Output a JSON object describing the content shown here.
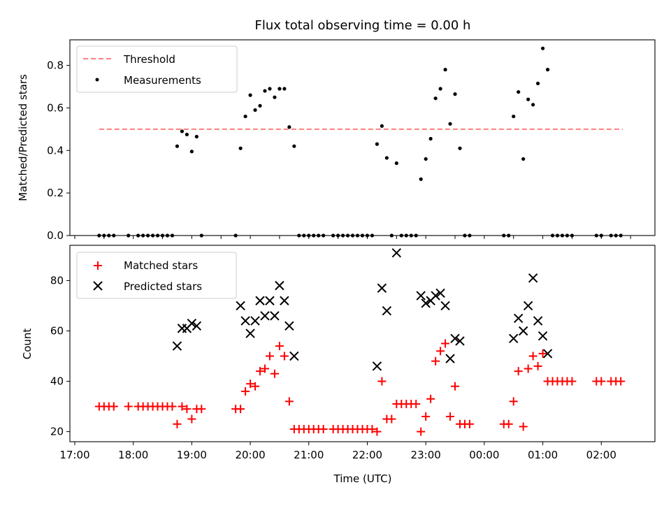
{
  "chart_data": [
    {
      "type": "scatter",
      "title": "Flux total observing time = 0.00 h",
      "xlabel": "",
      "ylabel": "Matched/Predicted stars",
      "xlim": [
        "16:55",
        "02:55"
      ],
      "ylim": [
        0,
        0.92
      ],
      "yticks": [
        0.0,
        0.2,
        0.4,
        0.6,
        0.8
      ],
      "ytick_labels": [
        "0.0",
        "0.2",
        "0.4",
        "0.6",
        "0.8"
      ],
      "legend_position": "upper-left",
      "legend": [
        {
          "label": "Threshold",
          "style": "dashed-line",
          "color": "#ff7f7f"
        },
        {
          "label": "Measurements",
          "style": "dot",
          "color": "#000000"
        }
      ],
      "threshold": {
        "value": 0.5,
        "x_start": "17:25",
        "x_end": "02:22"
      },
      "series": [
        {
          "name": "Measurements",
          "color": "#000000",
          "points": [
            [
              "17:25",
              0
            ],
            [
              "17:30",
              0
            ],
            [
              "17:35",
              0
            ],
            [
              "17:40",
              0
            ],
            [
              "17:55",
              0
            ],
            [
              "18:05",
              0
            ],
            [
              "18:10",
              0
            ],
            [
              "18:15",
              0
            ],
            [
              "18:20",
              0
            ],
            [
              "18:25",
              0
            ],
            [
              "18:30",
              0
            ],
            [
              "18:35",
              0
            ],
            [
              "18:40",
              0
            ],
            [
              "18:45",
              0.42
            ],
            [
              "18:50",
              0.49
            ],
            [
              "18:55",
              0.475
            ],
            [
              "19:00",
              0.395
            ],
            [
              "19:05",
              0.465
            ],
            [
              "19:10",
              0
            ],
            [
              "19:45",
              0
            ],
            [
              "19:50",
              0.41
            ],
            [
              "19:55",
              0.56
            ],
            [
              "20:00",
              0.66
            ],
            [
              "20:05",
              0.59
            ],
            [
              "20:10",
              0.61
            ],
            [
              "20:15",
              0.68
            ],
            [
              "20:20",
              0.69
            ],
            [
              "20:25",
              0.65
            ],
            [
              "20:30",
              0.69
            ],
            [
              "20:35",
              0.69
            ],
            [
              "20:40",
              0.51
            ],
            [
              "20:45",
              0.42
            ],
            [
              "20:50",
              0
            ],
            [
              "20:55",
              0
            ],
            [
              "21:00",
              0
            ],
            [
              "21:05",
              0
            ],
            [
              "21:10",
              0
            ],
            [
              "21:15",
              0
            ],
            [
              "21:25",
              0
            ],
            [
              "21:30",
              0
            ],
            [
              "21:35",
              0
            ],
            [
              "21:40",
              0
            ],
            [
              "21:45",
              0
            ],
            [
              "21:50",
              0
            ],
            [
              "21:55",
              0
            ],
            [
              "22:00",
              0
            ],
            [
              "22:05",
              0
            ],
            [
              "22:10",
              0.43
            ],
            [
              "22:15",
              0.515
            ],
            [
              "22:20",
              0.365
            ],
            [
              "22:25",
              0
            ],
            [
              "22:30",
              0.34
            ],
            [
              "22:35",
              0
            ],
            [
              "22:40",
              0
            ],
            [
              "22:45",
              0
            ],
            [
              "22:50",
              0
            ],
            [
              "22:55",
              0.265
            ],
            [
              "23:00",
              0.36
            ],
            [
              "23:05",
              0.455
            ],
            [
              "23:10",
              0.645
            ],
            [
              "23:15",
              0.69
            ],
            [
              "23:20",
              0.78
            ],
            [
              "23:25",
              0.525
            ],
            [
              "23:30",
              0.665
            ],
            [
              "23:35",
              0.41
            ],
            [
              "23:40",
              0
            ],
            [
              "23:45",
              0
            ],
            [
              "00:20",
              0
            ],
            [
              "00:25",
              0
            ],
            [
              "00:30",
              0.56
            ],
            [
              "00:35",
              0.675
            ],
            [
              "00:40",
              0.36
            ],
            [
              "00:45",
              0.64
            ],
            [
              "00:50",
              0.615
            ],
            [
              "00:55",
              0.715
            ],
            [
              "01:00",
              0.88
            ],
            [
              "01:05",
              0.78
            ],
            [
              "01:10",
              0
            ],
            [
              "01:15",
              0
            ],
            [
              "01:20",
              0
            ],
            [
              "01:25",
              0
            ],
            [
              "01:30",
              0
            ],
            [
              "01:55",
              0
            ],
            [
              "02:00",
              0
            ],
            [
              "02:10",
              0
            ],
            [
              "02:15",
              0
            ],
            [
              "02:20",
              0
            ]
          ]
        }
      ]
    },
    {
      "type": "scatter",
      "title": "",
      "xlabel": "Time (UTC)",
      "ylabel": "Count",
      "xlim": [
        "16:55",
        "02:55"
      ],
      "ylim": [
        16,
        94
      ],
      "yticks": [
        20,
        40,
        60,
        80
      ],
      "ytick_labels": [
        "20",
        "40",
        "60",
        "80"
      ],
      "xtick_labels": [
        "17:00",
        "18:00",
        "19:00",
        "20:00",
        "21:00",
        "22:00",
        "23:00",
        "00:00",
        "01:00",
        "02:00"
      ],
      "legend_position": "upper-left",
      "legend": [
        {
          "label": "Matched stars",
          "style": "plus",
          "color": "#ff0000"
        },
        {
          "label": "Predicted stars",
          "style": "x",
          "color": "#000000"
        }
      ],
      "series": [
        {
          "name": "Matched stars",
          "marker": "plus",
          "color": "#ff0000",
          "points": [
            [
              "17:25",
              30
            ],
            [
              "17:30",
              30
            ],
            [
              "17:35",
              30
            ],
            [
              "17:40",
              30
            ],
            [
              "17:55",
              30
            ],
            [
              "18:05",
              30
            ],
            [
              "18:10",
              30
            ],
            [
              "18:15",
              30
            ],
            [
              "18:20",
              30
            ],
            [
              "18:25",
              30
            ],
            [
              "18:30",
              30
            ],
            [
              "18:35",
              30
            ],
            [
              "18:40",
              30
            ],
            [
              "18:45",
              23
            ],
            [
              "18:50",
              30
            ],
            [
              "18:55",
              29
            ],
            [
              "19:00",
              25
            ],
            [
              "19:05",
              29
            ],
            [
              "19:10",
              29
            ],
            [
              "19:45",
              29
            ],
            [
              "19:50",
              29
            ],
            [
              "19:55",
              36
            ],
            [
              "20:00",
              39
            ],
            [
              "20:05",
              38
            ],
            [
              "20:10",
              44
            ],
            [
              "20:15",
              45
            ],
            [
              "20:20",
              50
            ],
            [
              "20:25",
              43
            ],
            [
              "20:30",
              54
            ],
            [
              "20:35",
              50
            ],
            [
              "20:40",
              32
            ],
            [
              "20:45",
              21
            ],
            [
              "20:50",
              21
            ],
            [
              "20:55",
              21
            ],
            [
              "21:00",
              21
            ],
            [
              "21:05",
              21
            ],
            [
              "21:10",
              21
            ],
            [
              "21:15",
              21
            ],
            [
              "21:25",
              21
            ],
            [
              "21:30",
              21
            ],
            [
              "21:35",
              21
            ],
            [
              "21:40",
              21
            ],
            [
              "21:45",
              21
            ],
            [
              "21:50",
              21
            ],
            [
              "21:55",
              21
            ],
            [
              "22:00",
              21
            ],
            [
              "22:05",
              21
            ],
            [
              "22:10",
              20
            ],
            [
              "22:15",
              40
            ],
            [
              "22:20",
              25
            ],
            [
              "22:25",
              25
            ],
            [
              "22:30",
              31
            ],
            [
              "22:35",
              31
            ],
            [
              "22:40",
              31
            ],
            [
              "22:45",
              31
            ],
            [
              "22:50",
              31
            ],
            [
              "22:55",
              20
            ],
            [
              "23:00",
              26
            ],
            [
              "23:05",
              33
            ],
            [
              "23:10",
              48
            ],
            [
              "23:15",
              52
            ],
            [
              "23:20",
              55
            ],
            [
              "23:25",
              26
            ],
            [
              "23:30",
              38
            ],
            [
              "23:35",
              23
            ],
            [
              "23:40",
              23
            ],
            [
              "23:45",
              23
            ],
            [
              "00:20",
              23
            ],
            [
              "00:25",
              23
            ],
            [
              "00:30",
              32
            ],
            [
              "00:35",
              44
            ],
            [
              "00:40",
              22
            ],
            [
              "00:45",
              45
            ],
            [
              "00:50",
              50
            ],
            [
              "00:55",
              46
            ],
            [
              "01:00",
              51
            ],
            [
              "01:05",
              40
            ],
            [
              "01:10",
              40
            ],
            [
              "01:15",
              40
            ],
            [
              "01:20",
              40
            ],
            [
              "01:25",
              40
            ],
            [
              "01:30",
              40
            ],
            [
              "01:55",
              40
            ],
            [
              "02:00",
              40
            ],
            [
              "02:10",
              40
            ],
            [
              "02:15",
              40
            ],
            [
              "02:20",
              40
            ]
          ]
        },
        {
          "name": "Predicted stars",
          "marker": "x",
          "color": "#000000",
          "points": [
            [
              "18:45",
              54
            ],
            [
              "18:50",
              61
            ],
            [
              "18:55",
              61
            ],
            [
              "19:00",
              63
            ],
            [
              "19:05",
              62
            ],
            [
              "19:50",
              70
            ],
            [
              "19:55",
              64
            ],
            [
              "20:00",
              59
            ],
            [
              "20:05",
              64
            ],
            [
              "20:10",
              72
            ],
            [
              "20:15",
              66
            ],
            [
              "20:20",
              72
            ],
            [
              "20:25",
              66
            ],
            [
              "20:30",
              78
            ],
            [
              "20:35",
              72
            ],
            [
              "20:40",
              62
            ],
            [
              "20:45",
              50
            ],
            [
              "22:10",
              46
            ],
            [
              "22:15",
              77
            ],
            [
              "22:20",
              68
            ],
            [
              "22:30",
              91
            ],
            [
              "22:55",
              74
            ],
            [
              "23:00",
              71
            ],
            [
              "23:05",
              72
            ],
            [
              "23:10",
              74
            ],
            [
              "23:15",
              75
            ],
            [
              "23:20",
              70
            ],
            [
              "23:25",
              49
            ],
            [
              "23:30",
              57
            ],
            [
              "23:35",
              56
            ],
            [
              "00:30",
              57
            ],
            [
              "00:35",
              65
            ],
            [
              "00:40",
              60
            ],
            [
              "00:45",
              70
            ],
            [
              "00:50",
              81
            ],
            [
              "00:55",
              64
            ],
            [
              "01:00",
              58
            ],
            [
              "01:05",
              51
            ]
          ]
        }
      ]
    }
  ]
}
